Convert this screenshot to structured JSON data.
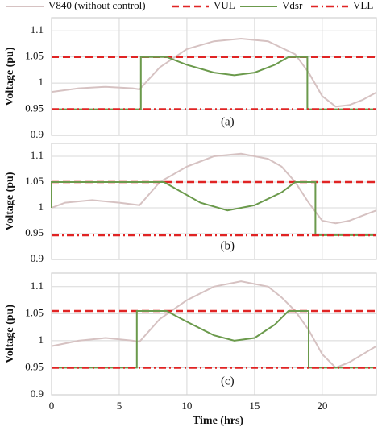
{
  "chart_data": [
    {
      "type": "line",
      "annotation": "(a)",
      "ylabel": "Voltage (pu)",
      "xlim": [
        0,
        24
      ],
      "ylim": [
        0.9,
        1.125
      ],
      "yticks": [
        0.9,
        0.95,
        1,
        1.05,
        1.1
      ],
      "grid": true,
      "series": [
        {
          "name": "V840 (without control)",
          "color": "#d6c2c2",
          "linestyle": "solid",
          "x": [
            0,
            2,
            4,
            6,
            6.5,
            8,
            10,
            12,
            14,
            16,
            18,
            19,
            20,
            21,
            22,
            23,
            24
          ],
          "values": [
            0.983,
            0.99,
            0.993,
            0.99,
            0.988,
            1.03,
            1.065,
            1.08,
            1.085,
            1.08,
            1.055,
            1.02,
            0.975,
            0.955,
            0.958,
            0.968,
            0.982
          ]
        },
        {
          "name": "VUL",
          "color": "#e02424",
          "linestyle": "dashed",
          "x": [
            0,
            24
          ],
          "values": [
            1.05,
            1.05
          ]
        },
        {
          "name": "Vdsr",
          "color": "#6b9a4c",
          "linestyle": "solid",
          "x": [
            0,
            6.6,
            6.6,
            8.5,
            10,
            12,
            13.5,
            15,
            16.5,
            17.5,
            18.9,
            18.9,
            24
          ],
          "values": [
            0.95,
            0.95,
            1.05,
            1.05,
            1.035,
            1.02,
            1.015,
            1.02,
            1.035,
            1.05,
            1.05,
            0.95,
            0.95
          ]
        },
        {
          "name": "VLL",
          "color": "#e02424",
          "linestyle": "dashdot",
          "x": [
            0,
            24
          ],
          "values": [
            0.95,
            0.95
          ]
        }
      ]
    },
    {
      "type": "line",
      "annotation": "(b)",
      "ylabel": "Voltage (pu)",
      "xlim": [
        0,
        24
      ],
      "ylim": [
        0.9,
        1.125
      ],
      "yticks": [
        0.9,
        0.95,
        1,
        1.05,
        1.1
      ],
      "grid": true,
      "series": [
        {
          "color": "#d6c2c2",
          "linestyle": "solid",
          "x": [
            0,
            1,
            3,
            5,
            6.5,
            8,
            10,
            12,
            14,
            16,
            17,
            18,
            19,
            20,
            21,
            22,
            23,
            24
          ],
          "values": [
            1.0,
            1.01,
            1.015,
            1.01,
            1.005,
            1.05,
            1.08,
            1.1,
            1.105,
            1.095,
            1.08,
            1.05,
            1.01,
            0.975,
            0.97,
            0.975,
            0.985,
            0.995
          ]
        },
        {
          "color": "#e02424",
          "linestyle": "dashed",
          "x": [
            0,
            24
          ],
          "values": [
            1.05,
            1.05
          ]
        },
        {
          "color": "#6b9a4c",
          "linestyle": "solid",
          "x": [
            0,
            0,
            8.3,
            11,
            13,
            15,
            17,
            18,
            19.5,
            19.5,
            24
          ],
          "values": [
            1.0,
            1.05,
            1.05,
            1.01,
            0.995,
            1.005,
            1.03,
            1.05,
            1.05,
            0.947,
            0.947
          ]
        },
        {
          "color": "#e02424",
          "linestyle": "dashdot",
          "x": [
            0,
            24
          ],
          "values": [
            0.947,
            0.947
          ]
        }
      ]
    },
    {
      "type": "line",
      "annotation": "(c)",
      "ylabel": "Voltage (pu)",
      "xlabel": "Time (hrs)",
      "xlim": [
        0,
        24
      ],
      "ylim": [
        0.9,
        1.125
      ],
      "xticks": [
        0,
        5,
        10,
        15,
        20
      ],
      "yticks": [
        0.9,
        0.95,
        1,
        1.05,
        1.1
      ],
      "grid": true,
      "series": [
        {
          "color": "#d6c2c2",
          "linestyle": "solid",
          "x": [
            0,
            2,
            4,
            6,
            6.5,
            8,
            10,
            12,
            14,
            16,
            17,
            18,
            19,
            20,
            21,
            22,
            23,
            24
          ],
          "values": [
            0.99,
            1.0,
            1.005,
            1.0,
            0.998,
            1.04,
            1.075,
            1.1,
            1.11,
            1.1,
            1.08,
            1.055,
            1.02,
            0.975,
            0.95,
            0.96,
            0.975,
            0.99
          ]
        },
        {
          "color": "#e02424",
          "linestyle": "dashed",
          "x": [
            0,
            24
          ],
          "values": [
            1.055,
            1.055
          ]
        },
        {
          "color": "#6b9a4c",
          "linestyle": "solid",
          "x": [
            0,
            6.3,
            6.3,
            8.5,
            10,
            12,
            13.5,
            15,
            16.5,
            17.5,
            19,
            19,
            24
          ],
          "values": [
            0.95,
            0.95,
            1.055,
            1.055,
            1.035,
            1.01,
            1.0,
            1.005,
            1.03,
            1.055,
            1.055,
            0.95,
            0.95
          ]
        },
        {
          "color": "#e02424",
          "linestyle": "dashdot",
          "x": [
            0,
            24
          ],
          "values": [
            0.95,
            0.95
          ]
        }
      ]
    }
  ]
}
